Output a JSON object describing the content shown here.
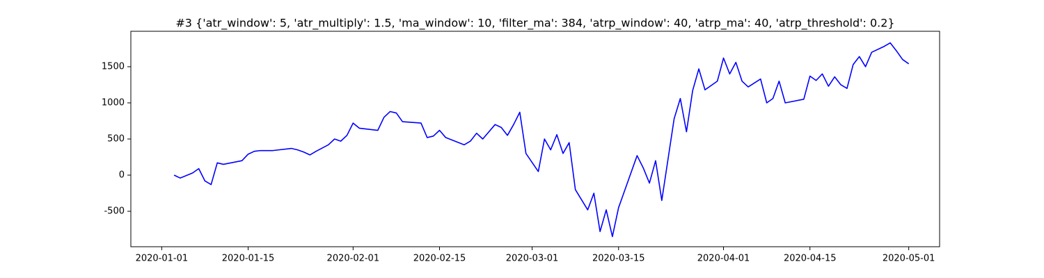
{
  "chart_data": {
    "type": "line",
    "title": "#3 {'atr_window': 5, 'atr_multiply': 1.5, 'ma_window': 10, 'filter_ma': 384, 'atrp_window': 40, 'atrp_ma': 40, 'atrp_threshold': 0.2}",
    "x": [
      "2020-01-03",
      "2020-01-04",
      "2020-01-06",
      "2020-01-07",
      "2020-01-08",
      "2020-01-09",
      "2020-01-10",
      "2020-01-11",
      "2020-01-14",
      "2020-01-15",
      "2020-01-16",
      "2020-01-17",
      "2020-01-19",
      "2020-01-22",
      "2020-01-23",
      "2020-01-24",
      "2020-01-25",
      "2020-01-26",
      "2020-01-28",
      "2020-01-29",
      "2020-01-30",
      "2020-01-31",
      "2020-02-01",
      "2020-02-02",
      "2020-02-05",
      "2020-02-06",
      "2020-02-07",
      "2020-02-08",
      "2020-02-09",
      "2020-02-12",
      "2020-02-13",
      "2020-02-14",
      "2020-02-15",
      "2020-02-16",
      "2020-02-19",
      "2020-02-20",
      "2020-02-21",
      "2020-02-22",
      "2020-02-24",
      "2020-02-25",
      "2020-02-26",
      "2020-02-27",
      "2020-02-28",
      "2020-02-29",
      "2020-03-02",
      "2020-03-03",
      "2020-03-04",
      "2020-03-05",
      "2020-03-06",
      "2020-03-07",
      "2020-03-08",
      "2020-03-10",
      "2020-03-11",
      "2020-03-12",
      "2020-03-13",
      "2020-03-14",
      "2020-03-15",
      "2020-03-18",
      "2020-03-19",
      "2020-03-20",
      "2020-03-21",
      "2020-03-22",
      "2020-03-24",
      "2020-03-25",
      "2020-03-26",
      "2020-03-27",
      "2020-03-28",
      "2020-03-29",
      "2020-03-31",
      "2020-04-01",
      "2020-04-02",
      "2020-04-03",
      "2020-04-04",
      "2020-04-05",
      "2020-04-07",
      "2020-04-08",
      "2020-04-09",
      "2020-04-10",
      "2020-04-11",
      "2020-04-14",
      "2020-04-15",
      "2020-04-16",
      "2020-04-17",
      "2020-04-18",
      "2020-04-19",
      "2020-04-20",
      "2020-04-21",
      "2020-04-22",
      "2020-04-23",
      "2020-04-24",
      "2020-04-25",
      "2020-04-27",
      "2020-04-28",
      "2020-04-29",
      "2020-04-30",
      "2020-05-01"
    ],
    "series": [
      {
        "color": "#0000ff",
        "values": [
          0,
          -40,
          30,
          90,
          -80,
          -130,
          170,
          150,
          200,
          290,
          330,
          340,
          340,
          370,
          350,
          320,
          280,
          330,
          420,
          500,
          470,
          550,
          720,
          650,
          620,
          800,
          880,
          860,
          740,
          720,
          520,
          540,
          620,
          520,
          420,
          470,
          580,
          500,
          700,
          660,
          550,
          700,
          870,
          300,
          50,
          500,
          350,
          560,
          300,
          450,
          -200,
          -480,
          -250,
          -780,
          -480,
          -850,
          -450,
          270,
          100,
          -110,
          200,
          -350,
          780,
          1060,
          600,
          1170,
          1470,
          1180,
          1300,
          1620,
          1400,
          1560,
          1300,
          1220,
          1330,
          1000,
          1060,
          1300,
          1000,
          1050,
          1370,
          1310,
          1400,
          1230,
          1360,
          1250,
          1200,
          1530,
          1640,
          1500,
          1700,
          1780,
          1830,
          1720,
          1600,
          1540
        ]
      }
    ],
    "xlim": [
      "2019-12-27",
      "2020-05-06"
    ],
    "xticks": [
      "2020-01-01",
      "2020-01-15",
      "2020-02-01",
      "2020-02-15",
      "2020-03-01",
      "2020-03-15",
      "2020-04-01",
      "2020-04-15",
      "2020-05-01"
    ],
    "ylim": [
      -990,
      1990
    ],
    "yticks": [
      -500,
      0,
      500,
      1000,
      1500
    ]
  }
}
